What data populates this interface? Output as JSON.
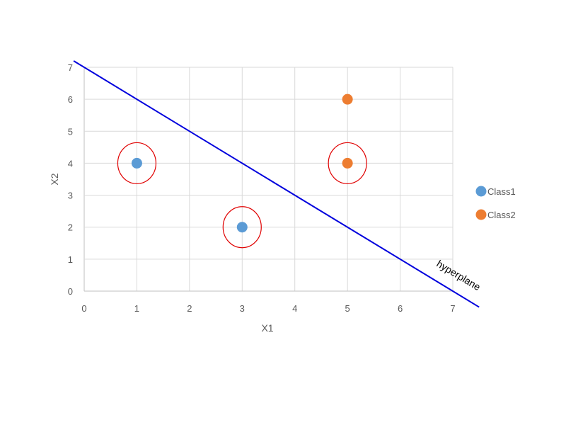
{
  "chart_data": {
    "type": "scatter",
    "title": "",
    "xlabel": "X1",
    "ylabel": "X2",
    "xlim": [
      0,
      7
    ],
    "ylim": [
      0,
      7
    ],
    "xticks": [
      "0",
      "1",
      "2",
      "3",
      "4",
      "5",
      "6",
      "7"
    ],
    "yticks": [
      "0",
      "1",
      "2",
      "3",
      "4",
      "5",
      "6",
      "7"
    ],
    "grid": true,
    "legend_position": "right",
    "series": [
      {
        "name": "Class1",
        "color": "#5b9bd5",
        "points": [
          {
            "x": 1,
            "y": 4
          },
          {
            "x": 3,
            "y": 2
          }
        ]
      },
      {
        "name": "Class2",
        "color": "#ed7d31",
        "points": [
          {
            "x": 5,
            "y": 6
          },
          {
            "x": 5,
            "y": 4
          }
        ]
      }
    ],
    "support_vectors": [
      {
        "x": 1,
        "y": 4
      },
      {
        "x": 3,
        "y": 2
      },
      {
        "x": 5,
        "y": 4
      }
    ],
    "support_vector_color": "#e00000",
    "hyperplane": {
      "label": "hyperplane",
      "color": "#0000dd",
      "start": {
        "x": -0.2,
        "y": 7.2
      },
      "end": {
        "x": 7.5,
        "y": -0.5
      }
    }
  }
}
